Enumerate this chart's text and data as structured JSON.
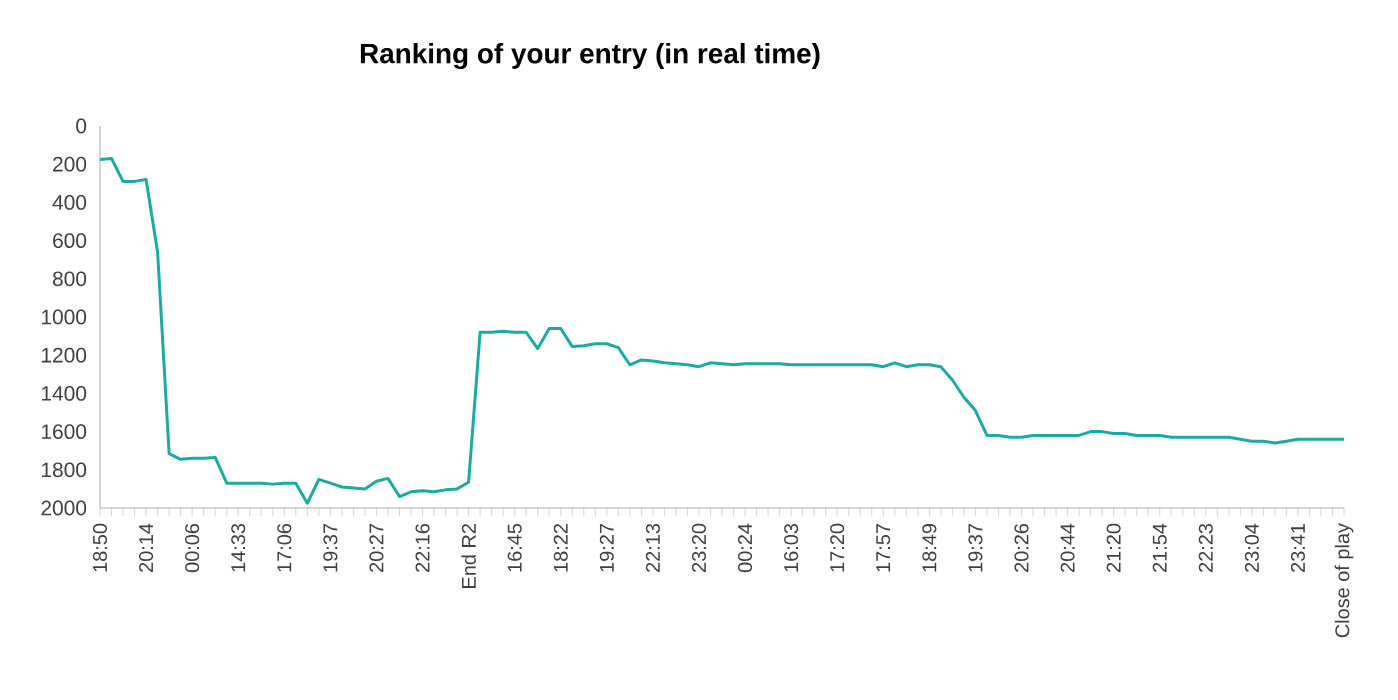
{
  "chart_data": {
    "type": "line",
    "title": "Ranking of your entry (in real time)",
    "categories": [
      "18:50",
      null,
      null,
      null,
      "20:14",
      null,
      null,
      null,
      "00:06",
      null,
      null,
      null,
      "14:33",
      null,
      null,
      null,
      "17:06",
      null,
      null,
      null,
      "19:37",
      null,
      null,
      null,
      "20:27",
      null,
      null,
      null,
      "22:16",
      null,
      null,
      null,
      "End R2",
      null,
      null,
      null,
      "16:45",
      null,
      null,
      null,
      "18:22",
      null,
      null,
      null,
      "19:27",
      null,
      null,
      null,
      "22:13",
      null,
      null,
      null,
      "23:20",
      null,
      null,
      null,
      "00:24",
      null,
      null,
      null,
      "16:03",
      null,
      null,
      null,
      "17:20",
      null,
      null,
      null,
      "17:57",
      null,
      null,
      null,
      "18:49",
      null,
      null,
      null,
      "19:37",
      null,
      null,
      null,
      "20:26",
      null,
      null,
      null,
      "20:44",
      null,
      null,
      null,
      "21:20",
      null,
      null,
      null,
      "21:54",
      null,
      null,
      null,
      "22:23",
      null,
      null,
      null,
      "23:04",
      null,
      null,
      null,
      "23:41",
      null,
      null,
      null,
      "Close of play"
    ],
    "values": [
      175,
      170,
      290,
      290,
      280,
      660,
      1715,
      1745,
      1740,
      1740,
      1735,
      1870,
      1870,
      1870,
      1870,
      1875,
      1870,
      1870,
      1975,
      1850,
      1870,
      1890,
      1895,
      1900,
      1860,
      1845,
      1940,
      1915,
      1910,
      1915,
      1905,
      1900,
      1865,
      1080,
      1080,
      1075,
      1080,
      1080,
      1165,
      1060,
      1060,
      1155,
      1150,
      1140,
      1140,
      1160,
      1250,
      1225,
      1230,
      1240,
      1245,
      1250,
      1260,
      1240,
      1245,
      1250,
      1245,
      1245,
      1245,
      1245,
      1250,
      1250,
      1250,
      1250,
      1250,
      1250,
      1250,
      1250,
      1260,
      1240,
      1260,
      1250,
      1250,
      1260,
      1330,
      1420,
      1490,
      1620,
      1620,
      1630,
      1630,
      1620,
      1620,
      1620,
      1620,
      1620,
      1600,
      1600,
      1610,
      1610,
      1620,
      1620,
      1620,
      1630,
      1630,
      1630,
      1630,
      1630,
      1630,
      1640,
      1650,
      1650,
      1660,
      1650,
      1640,
      1640,
      1640,
      1640,
      1640
    ],
    "color": "#1aaba5",
    "ylim": [
      2000,
      0
    ],
    "yticks": [
      0,
      200,
      400,
      600,
      800,
      1000,
      1200,
      1400,
      1600,
      1800,
      2000
    ],
    "marker": "none",
    "line_style": "solid"
  }
}
